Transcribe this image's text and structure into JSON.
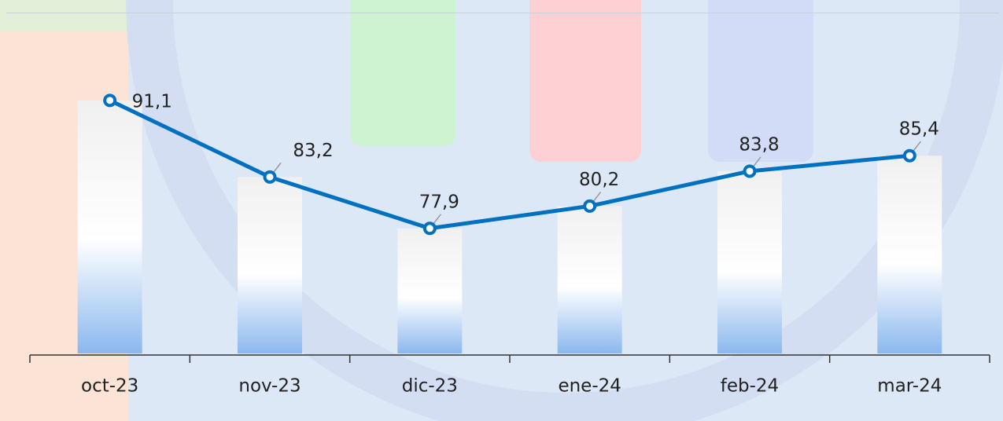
{
  "chart_data": {
    "type": "bar_line",
    "categories": [
      "oct-23",
      "nov-23",
      "dic-23",
      "ene-24",
      "feb-24",
      "mar-24"
    ],
    "values": [
      91.1,
      83.2,
      77.9,
      80.2,
      83.8,
      85.4
    ],
    "value_labels": [
      "91,1",
      "83,2",
      "77,9",
      "80,2",
      "83,8",
      "85,4"
    ],
    "color": "#0070c0",
    "ylim": [
      65,
      100
    ]
  }
}
